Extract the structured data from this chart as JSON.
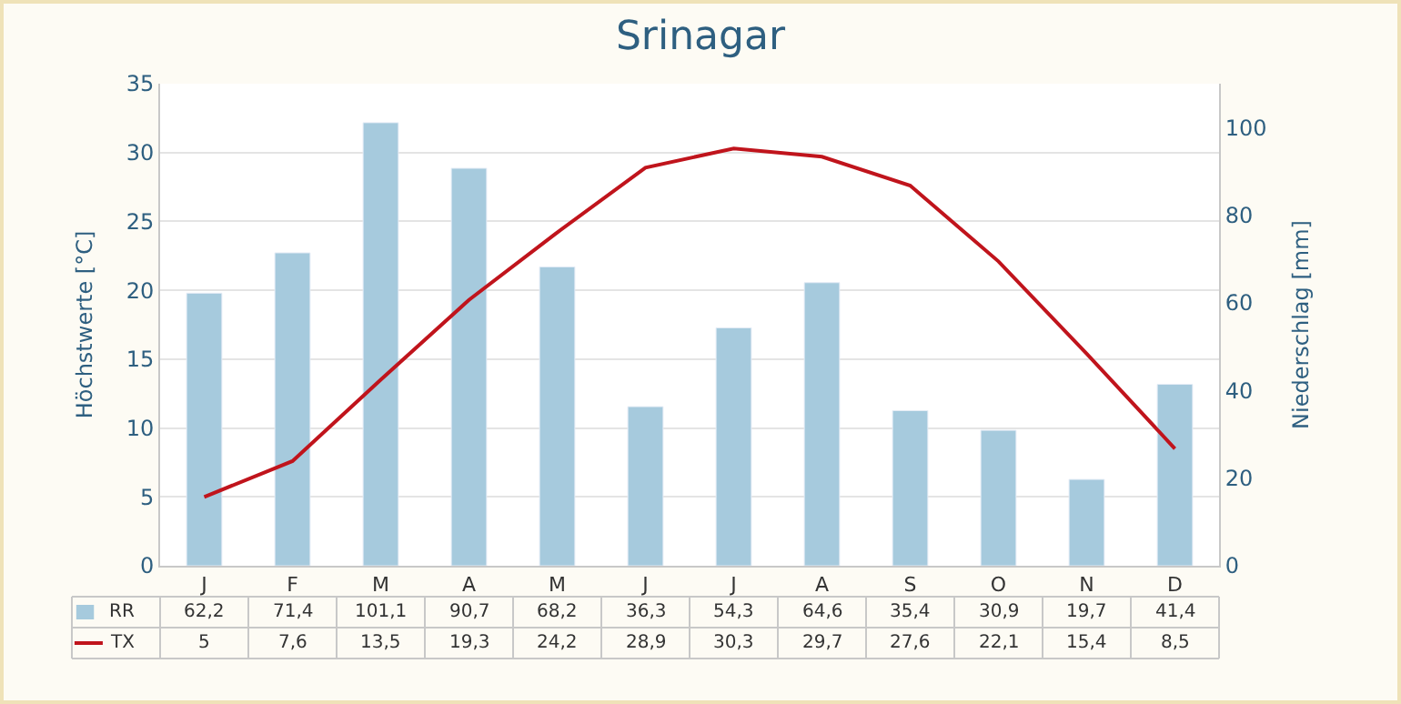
{
  "chart_data": {
    "type": "bar",
    "title": "Srinagar",
    "categories": [
      "J",
      "F",
      "M",
      "A",
      "M",
      "J",
      "J",
      "A",
      "S",
      "O",
      "N",
      "D"
    ],
    "series": [
      {
        "name": "RR",
        "axis": "y2",
        "color": "#a6cadd",
        "values": [
          62.2,
          71.4,
          101.1,
          90.7,
          68.2,
          36.3,
          54.3,
          64.6,
          35.4,
          30.9,
          19.7,
          41.4
        ],
        "value_labels": [
          "62,2",
          "71,4",
          "101,1",
          "90,7",
          "68,2",
          "36,3",
          "54,3",
          "64,6",
          "35,4",
          "30,9",
          "19,7",
          "41,4"
        ]
      },
      {
        "name": "TX",
        "type": "line",
        "color": "#c0141c",
        "values": [
          5,
          7.6,
          13.5,
          19.3,
          24.2,
          28.9,
          30.3,
          29.7,
          27.6,
          22.1,
          15.4,
          8.5
        ],
        "value_labels": [
          "5",
          "7,6",
          "13,5",
          "19,3",
          "24,2",
          "28,9",
          "30,3",
          "29,7",
          "27,6",
          "22,1",
          "15,4",
          "8,5"
        ]
      }
    ],
    "ylabel": "Höchstwerte [°C]",
    "y2label": "Niederschlag [mm]",
    "ylim": [
      0,
      35
    ],
    "yticks": [
      0,
      5,
      10,
      15,
      20,
      25,
      30,
      35
    ],
    "y2lim": [
      0,
      110
    ],
    "y2ticks": [
      0,
      20,
      40,
      60,
      80,
      100
    ],
    "grid": "y",
    "legend": "bottom left",
    "marker": "none",
    "line_style": "solid"
  }
}
